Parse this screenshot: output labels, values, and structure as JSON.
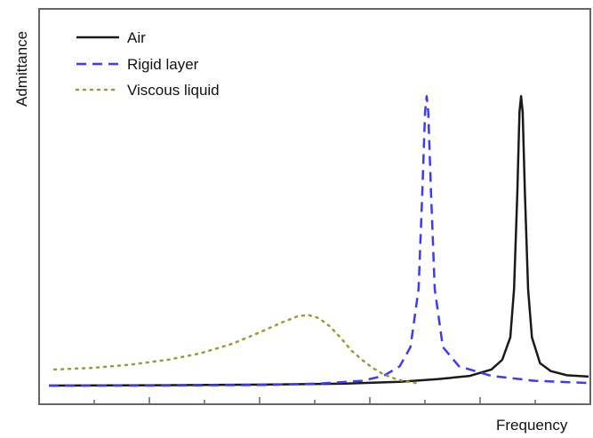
{
  "chart_data": {
    "type": "line",
    "title": "",
    "xlabel": "Frequency",
    "ylabel": "Admittance",
    "xlim": [
      0,
      100
    ],
    "ylim": [
      0,
      100
    ],
    "tick_labels_shown": false,
    "x_ticks": [
      10,
      20,
      30,
      40,
      50,
      60,
      70,
      80,
      90,
      100
    ],
    "grid": false,
    "legend_position": "top-left",
    "series": [
      {
        "name": "Air",
        "color": "#1a1a1a",
        "style": "solid",
        "x": [
          0,
          20,
          40,
          55,
          65,
          72,
          78,
          82,
          84,
          85.5,
          86.2,
          86.8,
          87.2,
          87.5,
          87.8,
          88.2,
          88.8,
          89.5,
          91,
          93,
          96,
          100
        ],
        "y": [
          0,
          0.1,
          0.3,
          0.6,
          1.2,
          2.0,
          3.0,
          5.0,
          8.0,
          15,
          30,
          60,
          85,
          90,
          85,
          60,
          30,
          15,
          7,
          4.5,
          3.2,
          2.8
        ]
      },
      {
        "name": "Rigid layer",
        "color": "#3b3bff",
        "style": "dashed",
        "x": [
          0,
          20,
          40,
          50,
          58,
          62,
          65,
          67,
          68.5,
          69.2,
          69.7,
          70.0,
          70.3,
          70.8,
          71.5,
          73,
          76,
          82,
          90,
          100
        ],
        "y": [
          0,
          0,
          0.2,
          0.6,
          1.5,
          3.0,
          6.0,
          12,
          30,
          60,
          85,
          90,
          85,
          60,
          30,
          12,
          6.0,
          3.0,
          1.5,
          0.8
        ]
      },
      {
        "name": "Viscous liquid",
        "color": "#9a9a3a",
        "style": "dotted",
        "x": [
          1,
          8,
          15,
          22,
          28,
          34,
          39,
          43,
          46,
          48,
          50,
          52,
          54,
          56,
          58,
          60,
          62,
          64,
          66,
          68
        ],
        "y": [
          5,
          5.5,
          6.5,
          8.0,
          10,
          13,
          16.5,
          19.5,
          21.5,
          22,
          21,
          18.5,
          15,
          11,
          8,
          5.5,
          3.5,
          2.2,
          1.3,
          0.8
        ]
      }
    ]
  }
}
